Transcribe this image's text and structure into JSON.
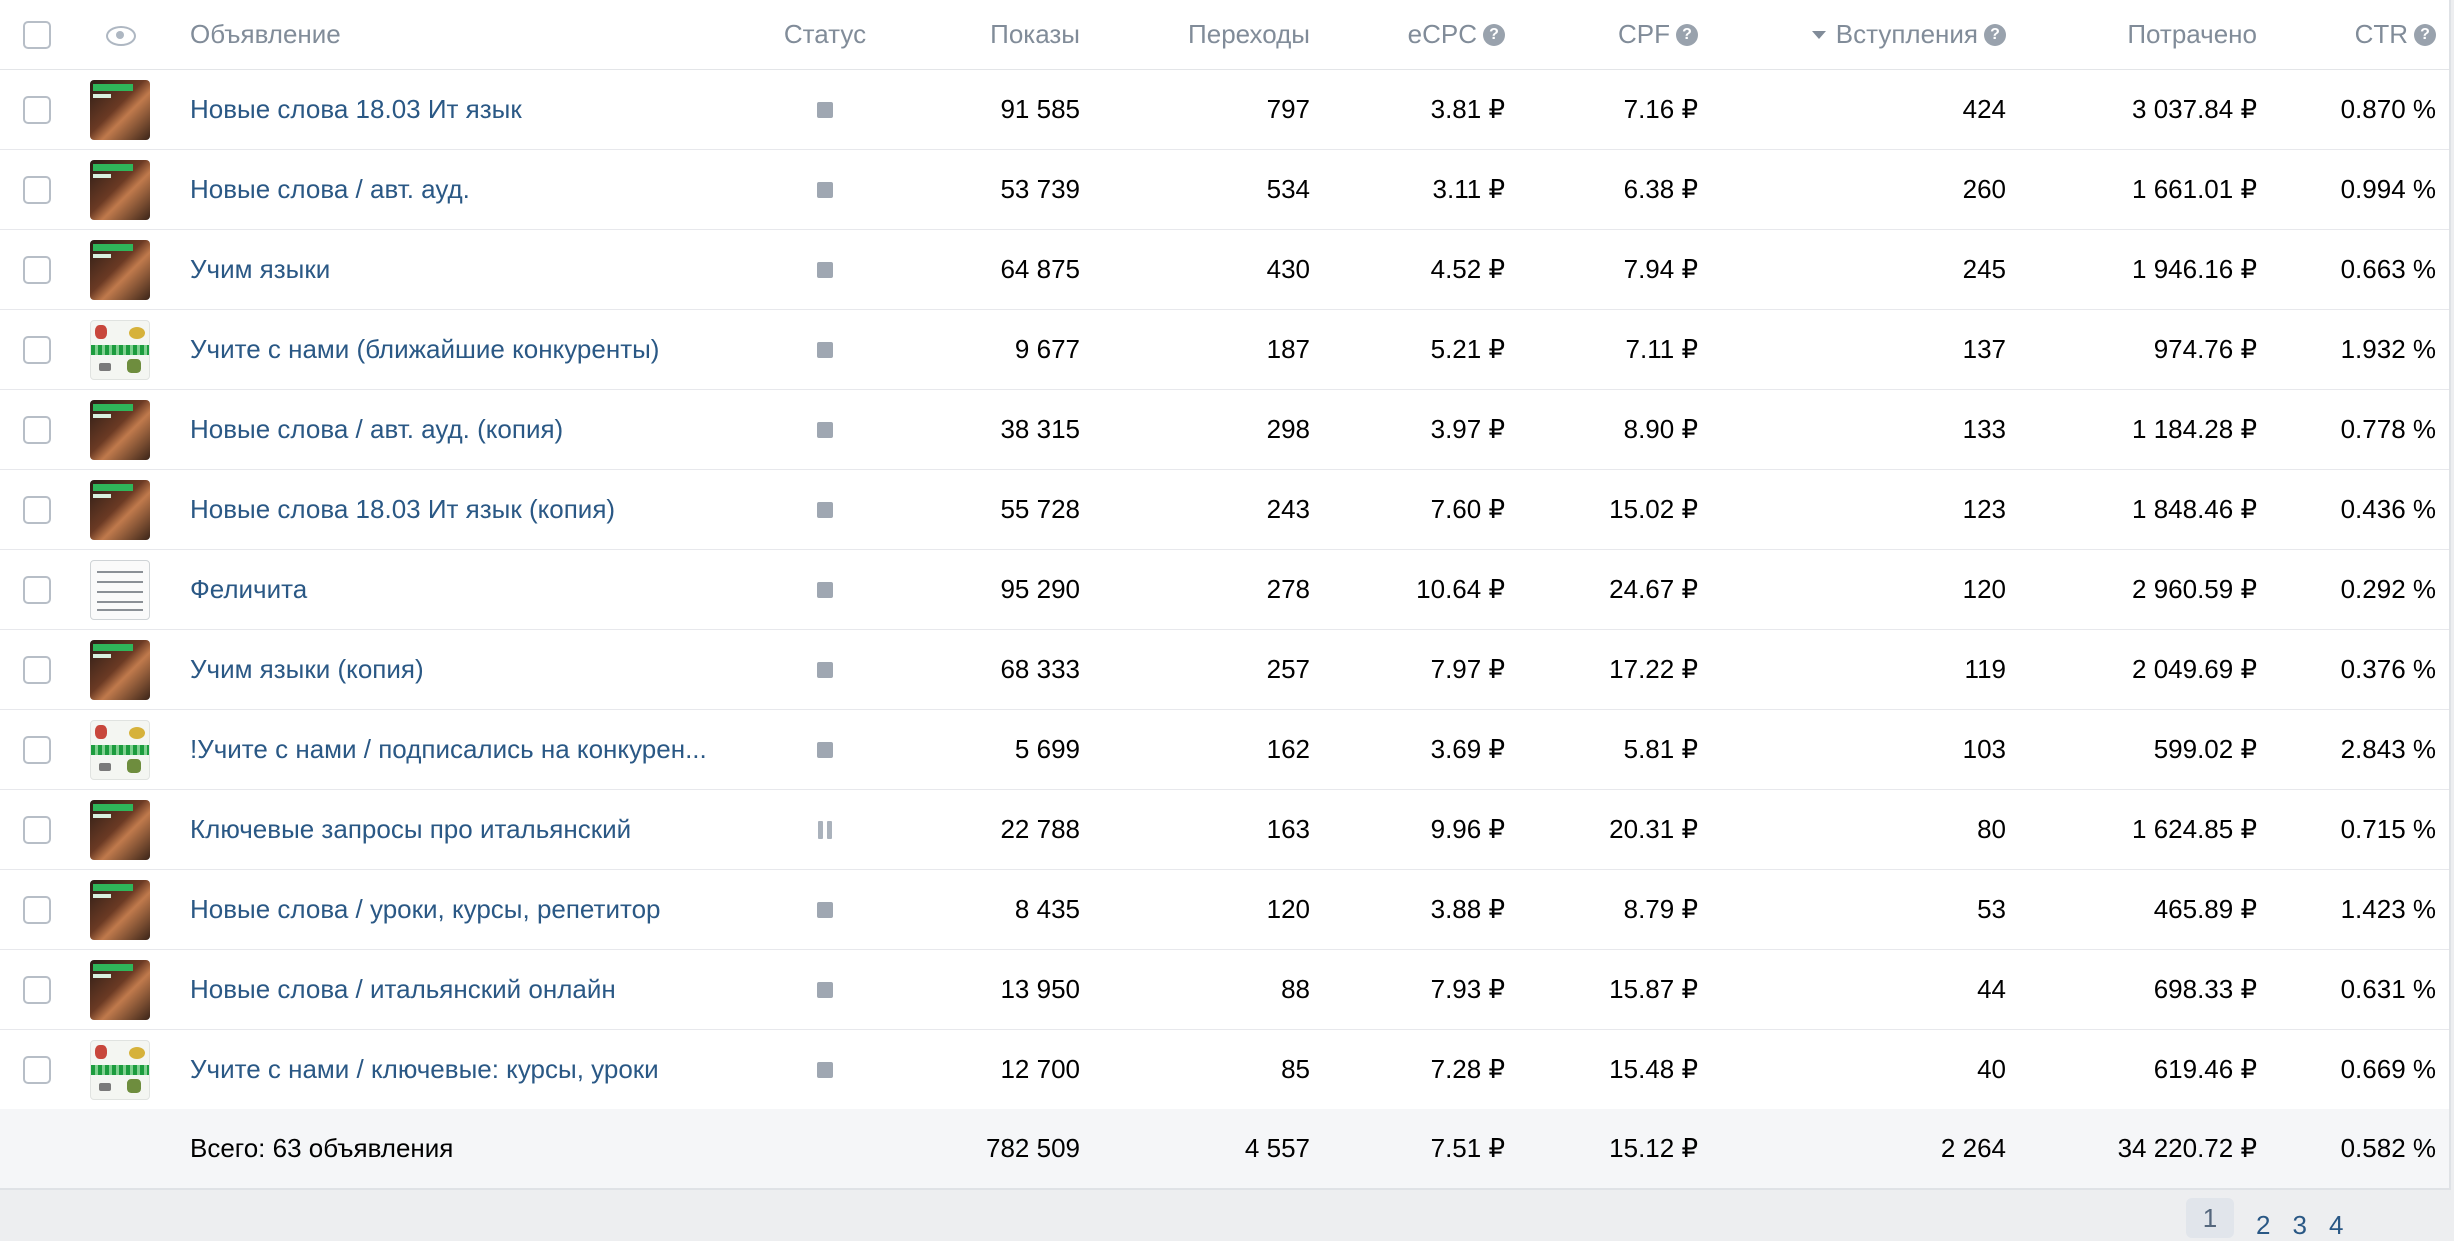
{
  "header": {
    "ad": "Объявление",
    "status": "Статус",
    "impressions": "Показы",
    "clicks": "Переходы",
    "ecpc": "eCPC",
    "cpf": "CPF",
    "joins": "Вступления",
    "spent": "Потрачено",
    "ctr": "CTR"
  },
  "rows": [
    {
      "thumb": "dark",
      "name": "Новые слова 18.03 Ит язык",
      "status": "stopped",
      "impressions": "91 585",
      "clicks": "797",
      "ecpc": "3.81 ₽",
      "cpf": "7.16 ₽",
      "joins": "424",
      "spent": "3 037.84 ₽",
      "ctr": "0.870 %"
    },
    {
      "thumb": "dark",
      "name": "Новые слова / авт. ауд.",
      "status": "stopped",
      "impressions": "53 739",
      "clicks": "534",
      "ecpc": "3.11 ₽",
      "cpf": "6.38 ₽",
      "joins": "260",
      "spent": "1 661.01 ₽",
      "ctr": "0.994 %"
    },
    {
      "thumb": "dark",
      "name": "Учим языки",
      "status": "stopped",
      "impressions": "64 875",
      "clicks": "430",
      "ecpc": "4.52 ₽",
      "cpf": "7.94 ₽",
      "joins": "245",
      "spent": "1 946.16 ₽",
      "ctr": "0.663 %"
    },
    {
      "thumb": "light",
      "name": "Учите с нами (ближайшие конкуренты)",
      "status": "stopped",
      "impressions": "9 677",
      "clicks": "187",
      "ecpc": "5.21 ₽",
      "cpf": "7.11 ₽",
      "joins": "137",
      "spent": "974.76 ₽",
      "ctr": "1.932 %"
    },
    {
      "thumb": "dark",
      "name": "Новые слова / авт. ауд. (копия)",
      "status": "stopped",
      "impressions": "38 315",
      "clicks": "298",
      "ecpc": "3.97 ₽",
      "cpf": "8.90 ₽",
      "joins": "133",
      "spent": "1 184.28 ₽",
      "ctr": "0.778 %"
    },
    {
      "thumb": "dark",
      "name": "Новые слова 18.03 Ит язык (копия)",
      "status": "stopped",
      "impressions": "55 728",
      "clicks": "243",
      "ecpc": "7.60 ₽",
      "cpf": "15.02 ₽",
      "joins": "123",
      "spent": "1 848.46 ₽",
      "ctr": "0.436 %"
    },
    {
      "thumb": "sketch",
      "name": "Феличита",
      "status": "stopped",
      "impressions": "95 290",
      "clicks": "278",
      "ecpc": "10.64 ₽",
      "cpf": "24.67 ₽",
      "joins": "120",
      "spent": "2 960.59 ₽",
      "ctr": "0.292 %"
    },
    {
      "thumb": "dark",
      "name": "Учим языки (копия)",
      "status": "stopped",
      "impressions": "68 333",
      "clicks": "257",
      "ecpc": "7.97 ₽",
      "cpf": "17.22 ₽",
      "joins": "119",
      "spent": "2 049.69 ₽",
      "ctr": "0.376 %"
    },
    {
      "thumb": "light",
      "name": "!Учите с нами / подписались на конкурен...",
      "status": "stopped",
      "impressions": "5 699",
      "clicks": "162",
      "ecpc": "3.69 ₽",
      "cpf": "5.81 ₽",
      "joins": "103",
      "spent": "599.02 ₽",
      "ctr": "2.843 %"
    },
    {
      "thumb": "dark",
      "name": "Ключевые запросы про итальянский",
      "status": "paused",
      "impressions": "22 788",
      "clicks": "163",
      "ecpc": "9.96 ₽",
      "cpf": "20.31 ₽",
      "joins": "80",
      "spent": "1 624.85 ₽",
      "ctr": "0.715 %"
    },
    {
      "thumb": "dark",
      "name": "Новые слова / уроки, курсы, репетитор",
      "status": "stopped",
      "impressions": "8 435",
      "clicks": "120",
      "ecpc": "3.88 ₽",
      "cpf": "8.79 ₽",
      "joins": "53",
      "spent": "465.89 ₽",
      "ctr": "1.423 %"
    },
    {
      "thumb": "dark",
      "name": "Новые слова / итальянский онлайн",
      "status": "stopped",
      "impressions": "13 950",
      "clicks": "88",
      "ecpc": "7.93 ₽",
      "cpf": "15.87 ₽",
      "joins": "44",
      "spent": "698.33 ₽",
      "ctr": "0.631 %"
    },
    {
      "thumb": "light",
      "name": "Учите с нами / ключевые: курсы, уроки",
      "status": "stopped",
      "impressions": "12 700",
      "clicks": "85",
      "ecpc": "7.28 ₽",
      "cpf": "15.48 ₽",
      "joins": "40",
      "spent": "619.46 ₽",
      "ctr": "0.669 %"
    }
  ],
  "total": {
    "label": "Всего: 63 объявления",
    "impressions": "782 509",
    "clicks": "4 557",
    "ecpc": "7.51 ₽",
    "cpf": "15.12 ₽",
    "joins": "2 264",
    "spent": "34 220.72 ₽",
    "ctr": "0.582 %"
  },
  "pagination": {
    "pages": [
      "1",
      "2",
      "3",
      "4"
    ],
    "active": 0
  }
}
